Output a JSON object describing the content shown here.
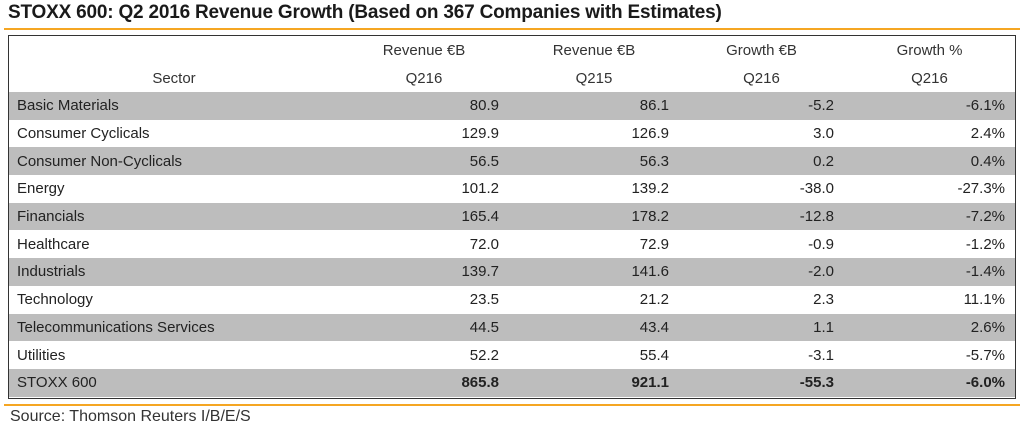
{
  "title": "STOXX 600: Q2 2016 Revenue Growth (Based on 367 Companies with Estimates)",
  "source": "Source: Thomson Reuters I/B/E/S",
  "colors": {
    "accent_rule": "#f5a623",
    "shaded_row": "#bdbdbd"
  },
  "chart_data": {
    "type": "table",
    "title": "STOXX 600: Q2 2016 Revenue Growth (Based on 367 Companies with Estimates)",
    "columns": [
      {
        "line1": "",
        "line2": "Sector"
      },
      {
        "line1": "Revenue €B",
        "line2": "Q216"
      },
      {
        "line1": "Revenue €B",
        "line2": "Q215"
      },
      {
        "line1": "Growth €B",
        "line2": "Q216"
      },
      {
        "line1": "Growth %",
        "line2": "Q216"
      }
    ],
    "rows": [
      {
        "sector": "Basic Materials",
        "rev_q216": "80.9",
        "rev_q215": "86.1",
        "growth_eb": "-5.2",
        "growth_pct": "-6.1%"
      },
      {
        "sector": "Consumer Cyclicals",
        "rev_q216": "129.9",
        "rev_q215": "126.9",
        "growth_eb": "3.0",
        "growth_pct": "2.4%"
      },
      {
        "sector": "Consumer Non-Cyclicals",
        "rev_q216": "56.5",
        "rev_q215": "56.3",
        "growth_eb": "0.2",
        "growth_pct": "0.4%"
      },
      {
        "sector": "Energy",
        "rev_q216": "101.2",
        "rev_q215": "139.2",
        "growth_eb": "-38.0",
        "growth_pct": "-27.3%"
      },
      {
        "sector": "Financials",
        "rev_q216": "165.4",
        "rev_q215": "178.2",
        "growth_eb": "-12.8",
        "growth_pct": "-7.2%"
      },
      {
        "sector": "Healthcare",
        "rev_q216": "72.0",
        "rev_q215": "72.9",
        "growth_eb": "-0.9",
        "growth_pct": "-1.2%"
      },
      {
        "sector": "Industrials",
        "rev_q216": "139.7",
        "rev_q215": "141.6",
        "growth_eb": "-2.0",
        "growth_pct": "-1.4%"
      },
      {
        "sector": "Technology",
        "rev_q216": "23.5",
        "rev_q215": "21.2",
        "growth_eb": "2.3",
        "growth_pct": "11.1%"
      },
      {
        "sector": "Telecommunications Services",
        "rev_q216": "44.5",
        "rev_q215": "43.4",
        "growth_eb": "1.1",
        "growth_pct": "2.6%"
      },
      {
        "sector": "Utilities",
        "rev_q216": "52.2",
        "rev_q215": "55.4",
        "growth_eb": "-3.1",
        "growth_pct": "-5.7%"
      }
    ],
    "total": {
      "sector": "STOXX 600",
      "rev_q216": "865.8",
      "rev_q215": "921.1",
      "growth_eb": "-55.3",
      "growth_pct": "-6.0%"
    }
  }
}
